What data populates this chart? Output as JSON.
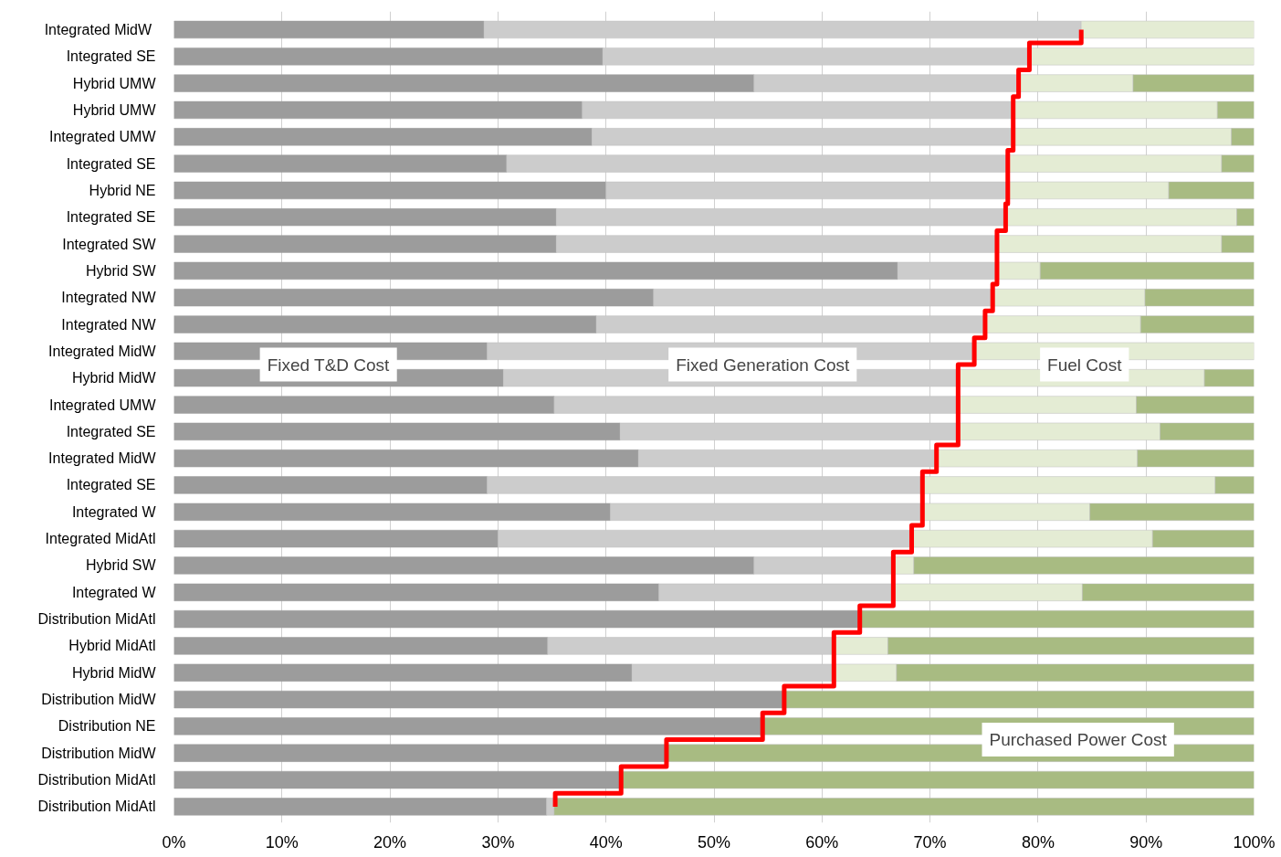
{
  "chart_data": {
    "type": "bar",
    "orientation": "horizontal",
    "stacked": true,
    "categories": [
      "Integrated  MidW",
      "Integrated SE",
      "Hybrid UMW",
      "Hybrid UMW",
      "Integrated UMW",
      "Integrated SE",
      "Hybrid NE",
      "Integrated SE",
      "Integrated SW",
      "Hybrid SW",
      "Integrated NW",
      "Integrated NW",
      "Integrated MidW",
      "Hybrid MidW",
      "Integrated UMW",
      "Integrated SE",
      "Integrated MidW",
      "Integrated SE",
      "Integrated W",
      "Integrated MidAtl",
      "Hybrid SW",
      "Integrated W",
      "Distribution MidAtl",
      "Hybrid MidAtl",
      "Hybrid MidW",
      "Distribution MidW",
      "Distribution NE",
      "Distribution MidW",
      "Distribution MidAtl",
      "Distribution MidAtl"
    ],
    "series": [
      {
        "name": "Fixed T&D Cost",
        "color": "#9c9c9c",
        "values": [
          28.7,
          39.7,
          53.7,
          37.8,
          38.7,
          30.8,
          40.0,
          35.4,
          35.4,
          67.0,
          44.4,
          39.1,
          29.0,
          30.5,
          35.2,
          41.3,
          43.0,
          29.0,
          40.4,
          30.0,
          53.7,
          44.9,
          63.5,
          34.6,
          42.4,
          56.5,
          54.5,
          45.6,
          41.4,
          34.5
        ]
      },
      {
        "name": "Fixed Generation Cost",
        "color": "#cccccc",
        "values": [
          55.3,
          39.5,
          24.5,
          39.9,
          39.0,
          46.4,
          37.2,
          41.6,
          40.8,
          9.2,
          31.4,
          36.0,
          45.1,
          42.1,
          37.4,
          31.3,
          27.6,
          40.3,
          28.9,
          38.3,
          12.9,
          21.7,
          null,
          26.5,
          18.7,
          null,
          null,
          null,
          null,
          0.7
        ]
      },
      {
        "name": "Fuel Cost",
        "color": "#e4ecd4",
        "values": [
          16.0,
          20.8,
          10.6,
          18.9,
          20.2,
          19.8,
          14.9,
          21.4,
          20.8,
          4.0,
          14.1,
          14.4,
          25.9,
          22.8,
          16.5,
          18.7,
          18.6,
          27.1,
          15.5,
          22.3,
          1.9,
          17.5,
          null,
          5.0,
          5.8,
          null,
          null,
          null,
          null,
          null
        ]
      },
      {
        "name": "Purchased Power Cost",
        "color": "#a8bb82",
        "values": [
          null,
          null,
          11.2,
          3.4,
          2.1,
          3.0,
          7.9,
          1.6,
          3.0,
          19.8,
          10.1,
          10.5,
          null,
          4.6,
          10.9,
          8.7,
          10.8,
          3.6,
          15.2,
          9.4,
          31.5,
          15.9,
          36.5,
          33.9,
          33.1,
          43.5,
          45.5,
          54.4,
          58.6,
          64.8
        ]
      },
      {
        "type": "step",
        "color": "#ff0000",
        "values": [
          84.0,
          79.2,
          78.2,
          77.7,
          77.7,
          77.2,
          77.2,
          77.0,
          76.2,
          76.2,
          75.8,
          75.1,
          74.1,
          72.6,
          72.6,
          72.6,
          70.6,
          69.3,
          69.3,
          68.3,
          66.6,
          66.6,
          63.5,
          61.1,
          61.1,
          56.5,
          54.5,
          45.6,
          41.4,
          35.3
        ]
      }
    ],
    "xlim": [
      0,
      100
    ],
    "xticks": [
      {
        "value": 0,
        "label": "0%"
      },
      {
        "value": 10,
        "label": "10%"
      },
      {
        "value": 20,
        "label": "20%"
      },
      {
        "value": 30,
        "label": "30%"
      },
      {
        "value": 40,
        "label": "40%"
      },
      {
        "value": 50,
        "label": "50%"
      },
      {
        "value": 60,
        "label": "60%"
      },
      {
        "value": 70,
        "label": "70%"
      },
      {
        "value": 80,
        "label": "80%"
      },
      {
        "value": 90,
        "label": "90%"
      },
      {
        "value": 100,
        "label": "100%"
      }
    ],
    "grid": "x"
  }
}
